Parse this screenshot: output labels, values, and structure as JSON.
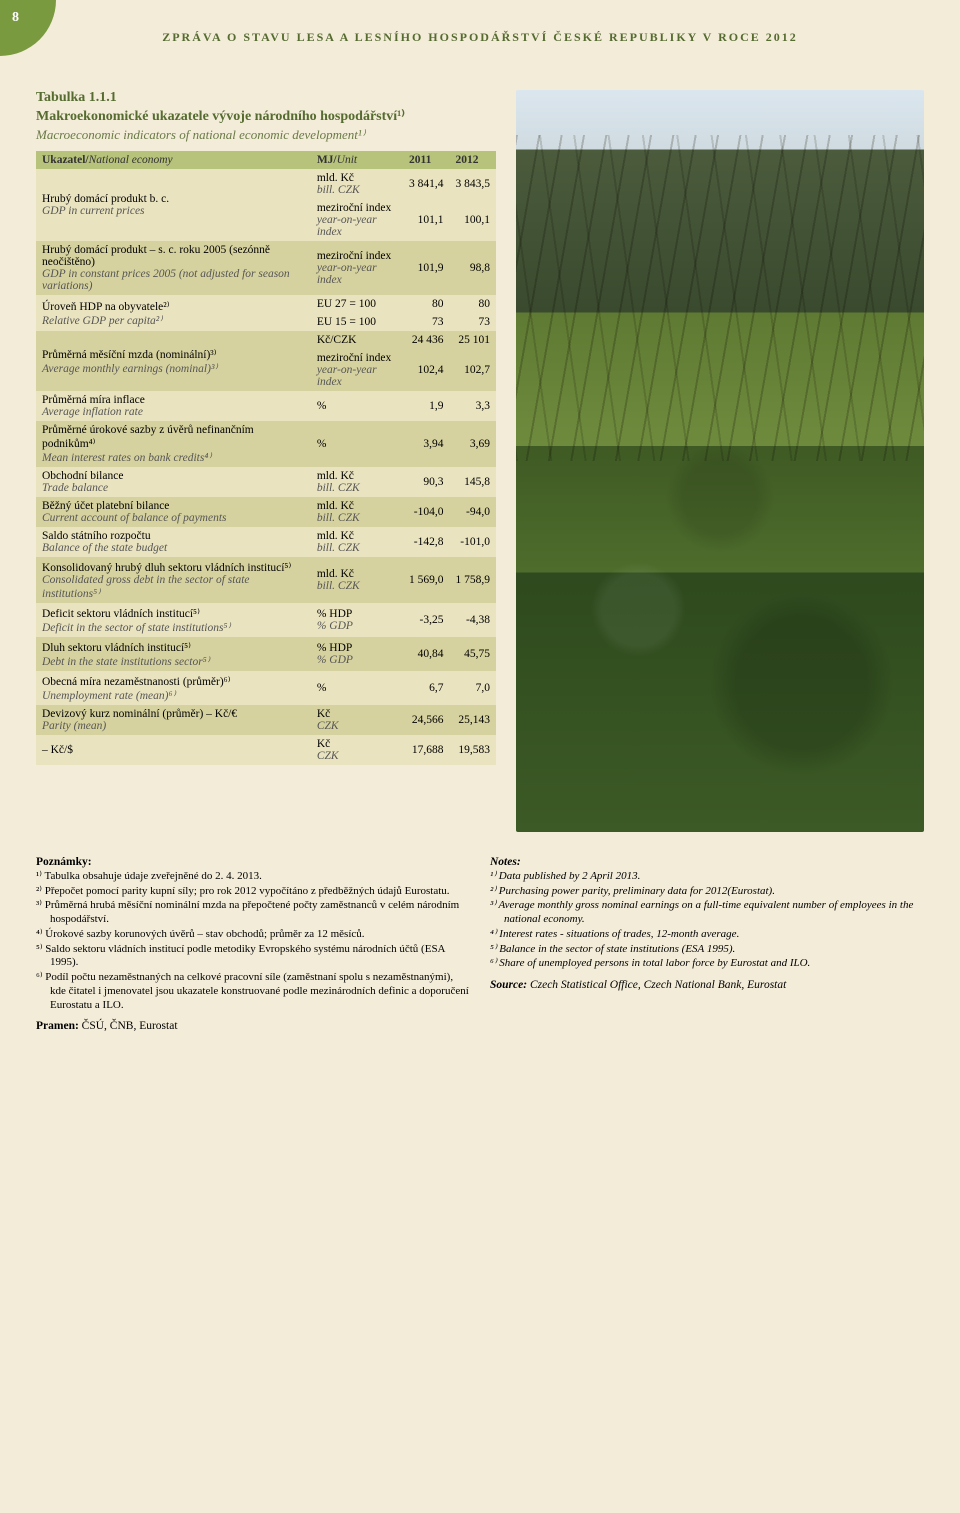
{
  "page": {
    "number": "8",
    "header": "ZPRÁVA O STAVU LESA A LESNÍHO HOSPODÁŘSTVÍ ČESKÉ REPUBLIKY V ROCE 2012"
  },
  "table": {
    "caption": "Tabulka 1.1.1",
    "title_cz": "Makroekonomické ukazatele vývoje národního hospodářství¹⁾",
    "title_en": "Macroeconomic indicators of national economic development¹⁾",
    "head": {
      "c1_cz": "Ukazatel/",
      "c1_en": "National economy",
      "c2_cz": "MJ/",
      "c2_en": "Unit",
      "c3": "2011",
      "c4": "2012"
    },
    "rows": [
      {
        "stripe": "a",
        "label_cz": "Hrubý domácí produkt b. c.",
        "label_en": "GDP in current prices",
        "unit_cz": "mld. Kč",
        "unit_en": "bill. CZK",
        "v1": "3 841,4",
        "v2": "3 843,5",
        "rowspan_label": 2
      },
      {
        "stripe": "a",
        "unit_cz": "meziroční index",
        "unit_en": "year-on-year index",
        "v1": "101,1",
        "v2": "100,1"
      },
      {
        "stripe": "b",
        "label_cz": "Hrubý domácí produkt – s. c. roku 2005 (sezónně neočištěno)",
        "label_en": "GDP in constant prices 2005 (not adjusted for season variations)",
        "unit_cz": "meziroční index",
        "unit_en": "year-on-year index",
        "v1": "101,9",
        "v2": "98,8"
      },
      {
        "stripe": "a",
        "label_cz": "Úroveň HDP na obyvatele²⁾",
        "label_en": "Relative GDP per capita²⁾",
        "unit_cz": "EU 27 = 100",
        "unit_en": "",
        "v1": "80",
        "v2": "80",
        "rowspan_label": 2
      },
      {
        "stripe": "a",
        "unit_cz": "EU 15 = 100",
        "unit_en": "",
        "v1": "73",
        "v2": "73"
      },
      {
        "stripe": "b",
        "label_cz": "Průměrná měsíční mzda (nominální)³⁾",
        "label_en": "Average monthly earnings (nominal)³⁾",
        "unit_cz": "Kč/CZK",
        "unit_en": "",
        "v1": "24 436",
        "v2": "25 101",
        "rowspan_label": 2
      },
      {
        "stripe": "b",
        "unit_cz": "meziroční index",
        "unit_en": "year-on-year index",
        "v1": "102,4",
        "v2": "102,7"
      },
      {
        "stripe": "a",
        "label_cz": "Průměrná míra inflace",
        "label_en": "Average inflation rate",
        "unit_cz": "%",
        "unit_en": "",
        "v1": "1,9",
        "v2": "3,3"
      },
      {
        "stripe": "b",
        "label_cz": "Průměrné úrokové sazby z úvěrů nefinančním podnikům⁴⁾",
        "label_en": "Mean interest rates on bank credits⁴⁾",
        "unit_cz": "%",
        "unit_en": "",
        "v1": "3,94",
        "v2": "3,69"
      },
      {
        "stripe": "a",
        "label_cz": "Obchodní bilance",
        "label_en": "Trade balance",
        "unit_cz": "mld. Kč",
        "unit_en": "bill. CZK",
        "v1": "90,3",
        "v2": "145,8"
      },
      {
        "stripe": "b",
        "label_cz": "Běžný účet platební bilance",
        "label_en": "Current account of balance of payments",
        "unit_cz": "mld. Kč",
        "unit_en": "bill. CZK",
        "v1": "-104,0",
        "v2": "-94,0"
      },
      {
        "stripe": "a",
        "label_cz": "Saldo státního rozpočtu",
        "label_en": "Balance of the state budget",
        "unit_cz": "mld. Kč",
        "unit_en": "bill. CZK",
        "v1": "-142,8",
        "v2": "-101,0"
      },
      {
        "stripe": "b",
        "label_cz": "Konsolidovaný hrubý dluh sektoru vládních institucí⁵⁾",
        "label_en": "Consolidated gross debt in the sector of state institutions⁵⁾",
        "unit_cz": "mld. Kč",
        "unit_en": "bill. CZK",
        "v1": "1 569,0",
        "v2": "1 758,9"
      },
      {
        "stripe": "a",
        "label_cz": "Deficit sektoru vládních institucí⁵⁾",
        "label_en": "Deficit in the sector of state institutions⁵⁾",
        "unit_cz": "% HDP",
        "unit_en": "% GDP",
        "v1": "-3,25",
        "v2": "-4,38"
      },
      {
        "stripe": "b",
        "label_cz": "Dluh sektoru vládních institucí⁵⁾",
        "label_en": "Debt in the state institutions sector⁵⁾",
        "unit_cz": "% HDP",
        "unit_en": "% GDP",
        "v1": "40,84",
        "v2": "45,75"
      },
      {
        "stripe": "a",
        "label_cz": "Obecná míra nezaměstnanosti (průměr)⁶⁾",
        "label_en": "Unemployment rate (mean)⁶⁾",
        "unit_cz": "%",
        "unit_en": "",
        "v1": "6,7",
        "v2": "7,0"
      },
      {
        "stripe": "b",
        "label_cz": "Devizový kurz nominální (průměr) – Kč/€",
        "label_en": "Parity (mean)",
        "unit_cz": "Kč",
        "unit_en": "CZK",
        "v1": "24,566",
        "v2": "25,143"
      },
      {
        "stripe": "a",
        "label_cz": "  – Kč/$",
        "label_en": "",
        "unit_cz": "Kč",
        "unit_en": "CZK",
        "v1": "17,688",
        "v2": "19,583"
      }
    ]
  },
  "notes_cz": {
    "heading": "Poznámky:",
    "items": [
      "¹⁾ Tabulka obsahuje údaje zveřejněné do 2. 4. 2013.",
      "²⁾ Přepočet pomocí parity kupní síly; pro rok 2012 vypočítáno z předběžných údajů Eurostatu.",
      "³⁾ Průměrná hrubá měsíční nominální mzda na přepočtené počty zaměstnanců v celém národním hospodářství.",
      "⁴⁾ Úrokové sazby korunových úvěrů – stav obchodů; průměr za 12 měsíců.",
      "⁵⁾ Saldo sektoru vládních institucí podle metodiky Evropského systému národních účtů (ESA 1995).",
      "⁶⁾ Podíl počtu nezaměstnaných na celkové pracovní síle (zaměstnaní spolu s nezaměstnanými), kde čitatel i jmenovatel jsou ukazatele konstruované podle mezinárodních definic a doporučení Eurostatu a ILO."
    ],
    "source_label": "Pramen:",
    "source_text": "ČSÚ, ČNB, Eurostat"
  },
  "notes_en": {
    "heading": "Notes:",
    "items": [
      "¹⁾ Data published by 2 April 2013.",
      "²⁾ Purchasing power parity, preliminary data for 2012(Eurostat).",
      "³⁾ Average monthly gross nominal earnings on a full-time equivalent number of employees in the national economy.",
      "⁴⁾ Interest rates - situations of trades, 12-month average.",
      "⁵⁾ Balance in the sector of state institutions (ESA 1995).",
      "⁶⁾ Share of unemployed persons in total labor force by Eurostat and ILO."
    ],
    "source_label": "Source:",
    "source_text": "Czech Statistical Office, Czech National Bank, Eurostat"
  }
}
